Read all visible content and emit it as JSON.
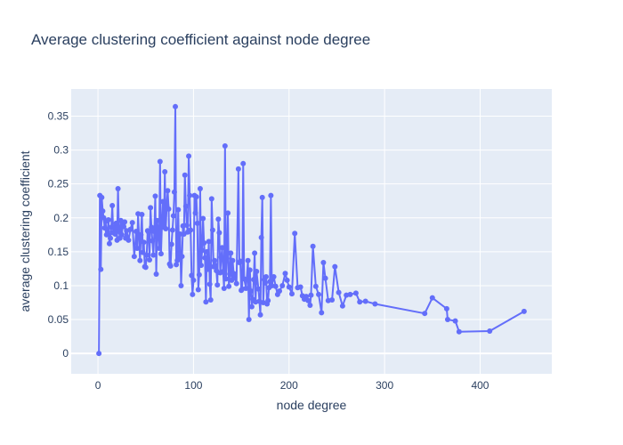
{
  "chart_data": {
    "type": "scatter",
    "mode": "lines+markers",
    "title": "Average clustering coefficient against node degree",
    "xlabel": "node degree",
    "ylabel": "average clustering coefficient",
    "xlim": [
      -28,
      475
    ],
    "ylim": [
      -0.03,
      0.39
    ],
    "xticks": [
      0,
      100,
      200,
      300,
      400
    ],
    "yticks": [
      0,
      0.05,
      0.1,
      0.15,
      0.2,
      0.25,
      0.3,
      0.35
    ],
    "ytick_labels": [
      "0",
      "0.05",
      "0.1",
      "0.15",
      "0.2",
      "0.25",
      "0.3",
      "0.35"
    ],
    "grid": true,
    "colors": {
      "series": "#636efa",
      "plot_bg": "#e5ecf6",
      "grid": "#ffffff",
      "text": "#2a3f5f"
    },
    "series": [
      {
        "x": [
          1,
          2,
          3,
          4,
          5,
          6,
          7,
          8,
          9,
          10,
          11,
          12,
          13,
          14,
          15,
          16,
          17,
          18,
          19,
          20,
          21,
          22,
          23,
          24,
          25,
          26,
          27,
          28,
          29,
          30,
          32,
          34,
          36,
          38,
          40,
          41,
          42,
          44,
          45,
          46,
          47,
          48,
          49,
          50,
          51,
          52,
          53,
          54,
          55,
          56,
          57,
          58,
          59,
          60,
          61,
          62,
          63,
          64,
          65,
          66,
          67,
          68,
          69,
          70,
          71,
          72,
          73,
          74,
          75,
          76,
          77,
          78,
          79,
          80,
          81,
          82,
          83,
          84,
          85,
          86,
          87,
          88,
          89,
          90,
          91,
          92,
          93,
          94,
          95,
          96,
          97,
          98,
          99,
          100,
          101,
          102,
          103,
          104,
          105,
          106,
          107,
          108,
          109,
          110,
          111,
          112,
          113,
          114,
          115,
          116,
          117,
          118,
          119,
          120,
          121,
          122,
          123,
          124,
          125,
          126,
          127,
          128,
          129,
          130,
          131,
          132,
          133,
          134,
          135,
          136,
          137,
          138,
          139,
          140,
          141,
          142,
          143,
          145,
          147,
          148,
          149,
          150,
          151,
          152,
          153,
          155,
          157,
          158,
          159,
          160,
          161,
          162,
          163,
          164,
          165,
          166,
          168,
          169,
          170,
          171,
          172,
          173,
          174,
          175,
          176,
          177,
          178,
          179,
          180,
          181,
          182,
          184,
          186,
          188,
          190,
          193,
          196,
          198,
          200,
          203,
          206,
          209,
          212,
          214,
          216,
          218,
          220,
          222,
          223,
          225,
          228,
          231,
          234,
          236,
          238,
          241,
          245,
          248,
          252,
          256,
          260,
          264,
          270,
          274,
          280,
          290,
          342,
          350,
          365,
          366,
          374,
          378,
          410,
          446
        ],
        "y": [
          0.0,
          0.233,
          0.124,
          0.23,
          0.21,
          0.2,
          0.185,
          0.195,
          0.175,
          0.18,
          0.197,
          0.162,
          0.17,
          0.186,
          0.218,
          0.178,
          0.186,
          0.176,
          0.192,
          0.167,
          0.243,
          0.18,
          0.17,
          0.196,
          0.175,
          0.19,
          0.187,
          0.194,
          0.17,
          0.181,
          0.167,
          0.183,
          0.193,
          0.143,
          0.18,
          0.155,
          0.206,
          0.137,
          0.175,
          0.205,
          0.149,
          0.164,
          0.128,
          0.127,
          0.145,
          0.181,
          0.179,
          0.138,
          0.215,
          0.186,
          0.166,
          0.145,
          0.18,
          0.232,
          0.117,
          0.196,
          0.178,
          0.155,
          0.283,
          0.147,
          0.19,
          0.224,
          0.186,
          0.268,
          0.184,
          0.218,
          0.24,
          0.213,
          0.132,
          0.129,
          0.161,
          0.182,
          0.203,
          0.238,
          0.364,
          0.131,
          0.137,
          0.212,
          0.14,
          0.176,
          0.1,
          0.143,
          0.188,
          0.176,
          0.263,
          0.217,
          0.189,
          0.179,
          0.291,
          0.233,
          0.182,
          0.115,
          0.087,
          0.108,
          0.233,
          0.207,
          0.231,
          0.192,
          0.094,
          0.116,
          0.243,
          0.13,
          0.152,
          0.199,
          0.163,
          0.141,
          0.076,
          0.15,
          0.124,
          0.165,
          0.102,
          0.079,
          0.228,
          0.182,
          0.128,
          0.137,
          0.13,
          0.122,
          0.101,
          0.198,
          0.178,
          0.119,
          0.142,
          0.156,
          0.121,
          0.096,
          0.306,
          0.11,
          0.14,
          0.207,
          0.099,
          0.117,
          0.148,
          0.108,
          0.137,
          0.118,
          0.112,
          0.103,
          0.272,
          0.134,
          0.136,
          0.093,
          0.095,
          0.28,
          0.11,
          0.096,
          0.137,
          0.05,
          0.123,
          0.092,
          0.069,
          0.08,
          0.109,
          0.148,
          0.076,
          0.121,
          0.095,
          0.077,
          0.057,
          0.171,
          0.23,
          0.075,
          0.109,
          0.104,
          0.113,
          0.073,
          0.078,
          0.097,
          0.106,
          0.233,
          0.1,
          0.113,
          0.099,
          0.087,
          0.092,
          0.1,
          0.118,
          0.108,
          0.098,
          0.088,
          0.177,
          0.097,
          0.098,
          0.085,
          0.08,
          0.084,
          0.078,
          0.071,
          0.086,
          0.158,
          0.099,
          0.087,
          0.06,
          0.134,
          0.111,
          0.078,
          0.079,
          0.128,
          0.09,
          0.07,
          0.086,
          0.087,
          0.089,
          0.076,
          0.077,
          0.073,
          0.059,
          0.082,
          0.066,
          0.05,
          0.048,
          0.032,
          0.033,
          0.062
        ]
      }
    ]
  }
}
